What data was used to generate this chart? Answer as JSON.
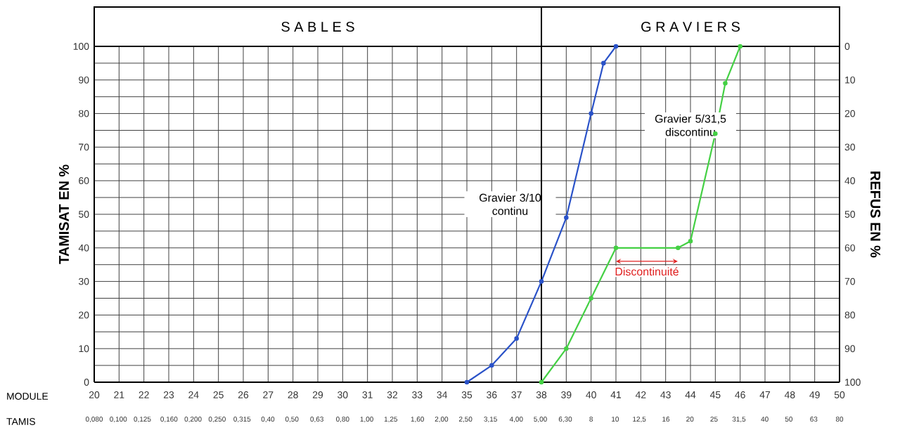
{
  "chart_data": {
    "type": "line",
    "xlabel": "MODULE",
    "x2label": "TAMIS",
    "ylabel": "TAMISAT EN %",
    "y2label": "REFUS EN %",
    "xlim": [
      20,
      50
    ],
    "xticks": [
      20,
      21,
      22,
      23,
      24,
      25,
      26,
      27,
      28,
      29,
      30,
      31,
      32,
      33,
      34,
      35,
      36,
      37,
      38,
      39,
      40,
      41,
      42,
      43,
      44,
      45,
      46,
      47,
      48,
      49,
      50
    ],
    "log": "x2",
    "x2lim": [
      0.08,
      80
    ],
    "x2ticks": [
      {
        "value": 0.08,
        "label": "0,080"
      },
      {
        "value": 0.1,
        "label": "0,100"
      },
      {
        "value": 0.125,
        "label": "0,125"
      },
      {
        "value": 0.16,
        "label": "0,160"
      },
      {
        "value": 0.2,
        "label": "0,200"
      },
      {
        "value": 0.25,
        "label": "0,250"
      },
      {
        "value": 0.315,
        "label": "0,315"
      },
      {
        "value": 0.4,
        "label": "0,40"
      },
      {
        "value": 0.5,
        "label": "0,50"
      },
      {
        "value": 0.63,
        "label": "0,63"
      },
      {
        "value": 0.8,
        "label": "0,80"
      },
      {
        "value": 1,
        "label": "1,00"
      },
      {
        "value": 1.25,
        "label": "1,25"
      },
      {
        "value": 1.6,
        "label": "1,60"
      },
      {
        "value": 2,
        "label": "2,00"
      },
      {
        "value": 2.5,
        "label": "2,50"
      },
      {
        "value": 3.15,
        "label": "3,15"
      },
      {
        "value": 4,
        "label": "4,00"
      },
      {
        "value": 5,
        "label": "5,00"
      },
      {
        "value": 6.3,
        "label": "6,30"
      },
      8,
      10,
      {
        "value": 12.5,
        "label": "12,5"
      },
      16,
      20,
      25,
      {
        "value": 31.5,
        "label": "31,5"
      },
      40,
      50,
      63,
      80
    ],
    "ylim": [
      0,
      100
    ],
    "yticks": [
      0,
      10,
      20,
      30,
      40,
      50,
      60,
      70,
      80,
      90,
      100
    ],
    "y2lim": [
      100,
      0
    ],
    "y2ticks": [
      0,
      10,
      20,
      30,
      40,
      50,
      60,
      70,
      80,
      90,
      100
    ],
    "grid": true,
    "marker": "circle",
    "line_style": "solid",
    "series": [
      {
        "name": "Gravier 3/10 continu",
        "color": "#2a52c8",
        "x": [
          35,
          36,
          37,
          38,
          39,
          40,
          40.5,
          41
        ],
        "values": [
          0,
          5,
          13,
          30,
          49,
          80,
          95,
          100
        ]
      },
      {
        "name": "Gravier 5/31,5 discontinu",
        "color": "#44d044",
        "x": [
          38,
          39,
          40,
          41,
          43.5,
          44,
          45,
          45.4,
          46
        ],
        "values": [
          0,
          10,
          25,
          40,
          40,
          42,
          74,
          89,
          100
        ]
      }
    ],
    "ref_lines": [
      {
        "axis": "x",
        "value": 38
      }
    ],
    "annotations": [
      "S A B L E S",
      "G R A V I E R S",
      "Discontinuité"
    ]
  }
}
